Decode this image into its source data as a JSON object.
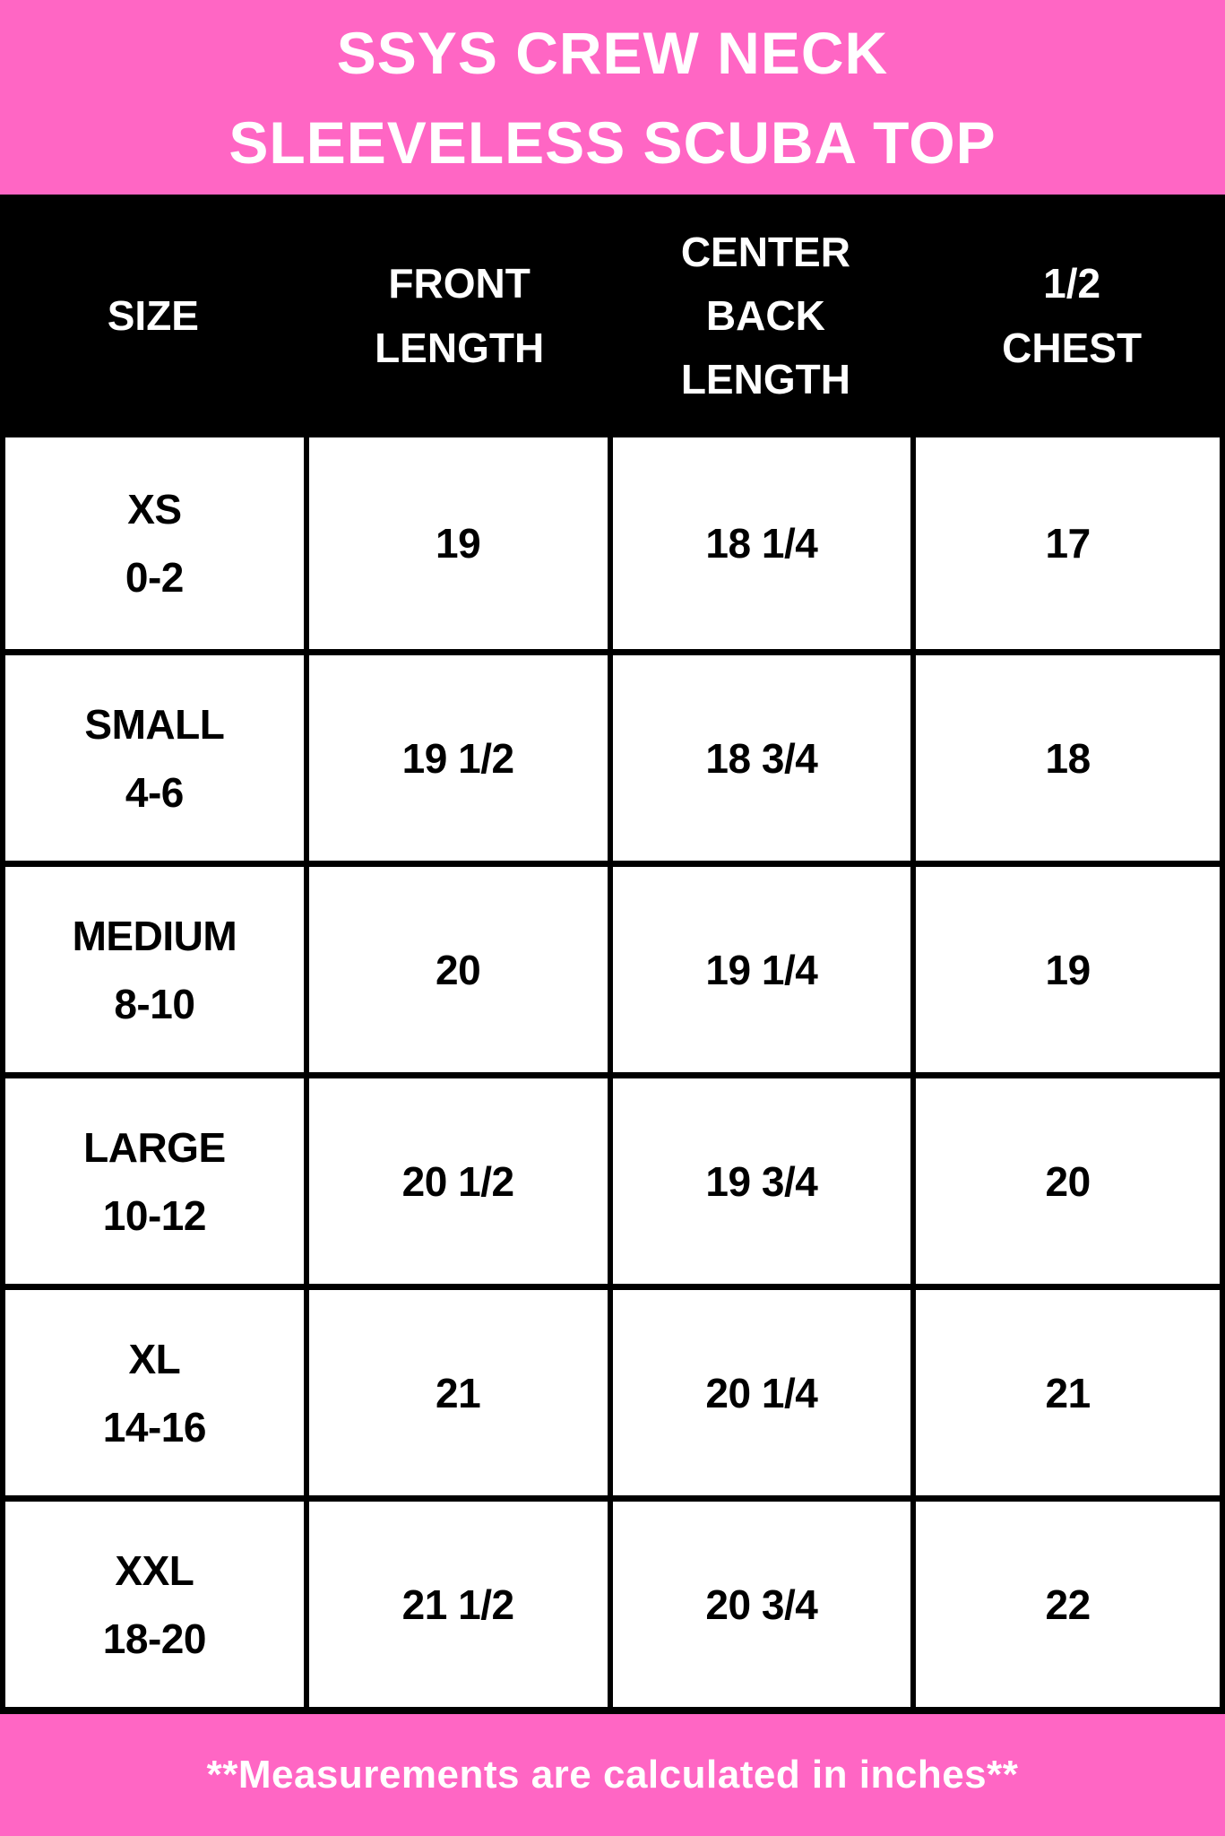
{
  "title": {
    "line1": "SSYS CREW NECK",
    "line2": "SLEEVELESS SCUBA TOP"
  },
  "table": {
    "columns": [
      "SIZE",
      "FRONT LENGTH",
      "CENTER BACK LENGTH",
      "1/2 CHEST"
    ],
    "rows": [
      {
        "size_label": "XS",
        "size_range": "0-2",
        "front_length": "19",
        "center_back_length": "18 1/4",
        "half_chest": "17"
      },
      {
        "size_label": "SMALL",
        "size_range": "4-6",
        "front_length": "19 1/2",
        "center_back_length": "18 3/4",
        "half_chest": "18"
      },
      {
        "size_label": "MEDIUM",
        "size_range": "8-10",
        "front_length": "20",
        "center_back_length": "19 1/4",
        "half_chest": "19"
      },
      {
        "size_label": "LARGE",
        "size_range": "10-12",
        "front_length": "20 1/2",
        "center_back_length": "19 3/4",
        "half_chest": "20"
      },
      {
        "size_label": "XL",
        "size_range": "14-16",
        "front_length": "21",
        "center_back_length": "20 1/4",
        "half_chest": "21"
      },
      {
        "size_label": "XXL",
        "size_range": "18-20",
        "front_length": "21 1/2",
        "center_back_length": "20 3/4",
        "half_chest": "22"
      }
    ]
  },
  "footer": {
    "note": "**Measurements are calculated in inches**"
  },
  "colors": {
    "pink": "#FF66C4",
    "black": "#000000",
    "white": "#FFFFFF"
  },
  "chart_data": {
    "type": "table",
    "title": "SSYS CREW NECK SLEEVELESS SCUBA TOP",
    "columns": [
      "SIZE",
      "FRONT LENGTH",
      "CENTER BACK LENGTH",
      "1/2 CHEST"
    ],
    "rows": [
      [
        "XS 0-2",
        "19",
        "18 1/4",
        "17"
      ],
      [
        "SMALL 4-6",
        "19 1/2",
        "18 3/4",
        "18"
      ],
      [
        "MEDIUM 8-10",
        "20",
        "19 1/4",
        "19"
      ],
      [
        "LARGE 10-12",
        "20 1/2",
        "19 3/4",
        "20"
      ],
      [
        "XL 14-16",
        "21",
        "20 1/4",
        "21"
      ],
      [
        "XXL 18-20",
        "21 1/2",
        "20 3/4",
        "22"
      ]
    ],
    "units": "inches",
    "footnote": "**Measurements are calculated in inches**"
  }
}
